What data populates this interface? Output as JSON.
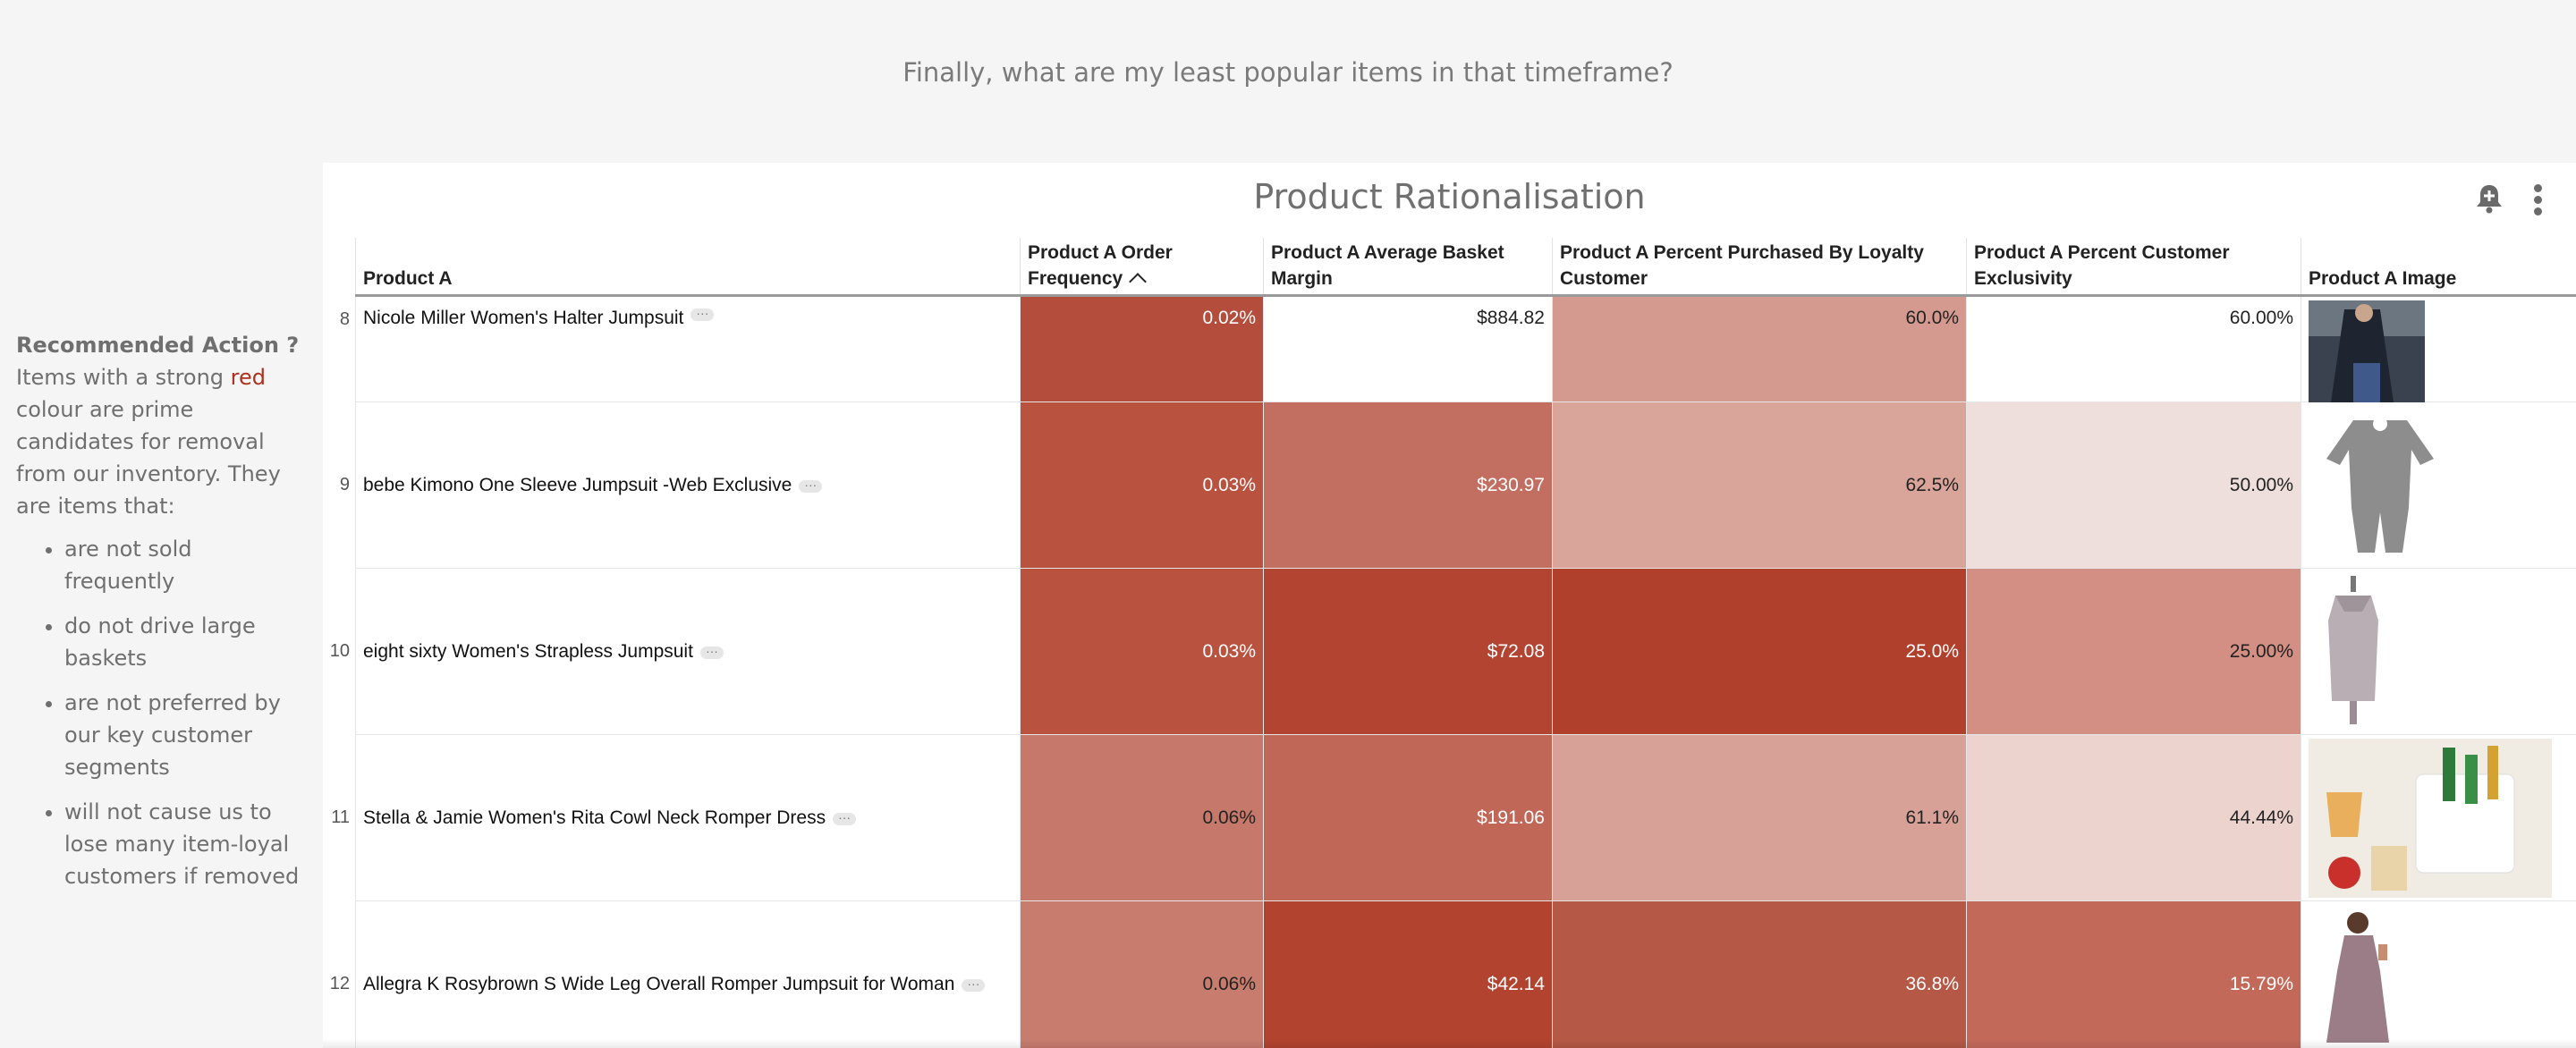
{
  "question": "Finally, what are my least popular items in that timeframe?",
  "sidebar": {
    "title": "Recommended Action ?",
    "intro_before": "Items with a strong ",
    "intro_red": "red",
    "intro_after": " colour are prime candidates for removal from our inventory. They are items that:",
    "bullets": [
      "are not sold frequently",
      "do not drive large baskets",
      "are not preferred by our key customer segments",
      "will not cause us to lose many item-loyal customers if removed"
    ]
  },
  "card": {
    "title": "Product Rationalisation",
    "columns": [
      "Product A",
      "Product A Order Frequency",
      "Product A Average Basket Margin",
      "Product A Percent Purchased By Loyalty Customer",
      "Product A Percent Customer Exclusivity",
      "Product A Image"
    ],
    "rows": [
      {
        "n": "8",
        "name": "Nicole Miller Women's Halter Jumpsuit",
        "freq": "0.02%",
        "margin": "$884.82",
        "loyal": "60.0%",
        "excl": "60.00%",
        "image": "dark-top-photo"
      },
      {
        "n": "9",
        "name": "bebe Kimono One Sleeve Jumpsuit -Web Exclusive",
        "freq": "0.03%",
        "margin": "$230.97",
        "loyal": "62.5%",
        "excl": "50.00%",
        "image": "grey-romper-photo"
      },
      {
        "n": "10",
        "name": "eight sixty Women's Strapless Jumpsuit",
        "freq": "0.03%",
        "margin": "$72.08",
        "loyal": "25.0%",
        "excl": "25.00%",
        "image": "grey-tank-photo"
      },
      {
        "n": "11",
        "name": "Stella & Jamie Women's Rita Cowl Neck Romper Dress",
        "freq": "0.06%",
        "margin": "$191.06",
        "loyal": "61.1%",
        "excl": "44.44%",
        "image": "drinks-table-photo"
      },
      {
        "n": "12",
        "name": "Allegra K Rosybrown S Wide Leg Overall Romper Jumpsuit for Woman",
        "freq": "0.06%",
        "margin": "$42.14",
        "loyal": "36.8%",
        "excl": "15.79%",
        "image": "mauve-dress-photo"
      }
    ],
    "heat_colors": [
      [
        "#b44d3b",
        "#ffffff",
        "#d59a8f",
        "#ffffff"
      ],
      [
        "#b9523f",
        "#c26f61",
        "#d9a59b",
        "#efdfdc"
      ],
      [
        "#b9523f",
        "#b44432",
        "#b03f2b",
        "#d38f84"
      ],
      [
        "#c6796b",
        "#c06758",
        "#d7a197",
        "#ecd3ce"
      ],
      [
        "#c77c6e",
        "#b2432f",
        "#b65846",
        "#c3695a"
      ]
    ]
  }
}
